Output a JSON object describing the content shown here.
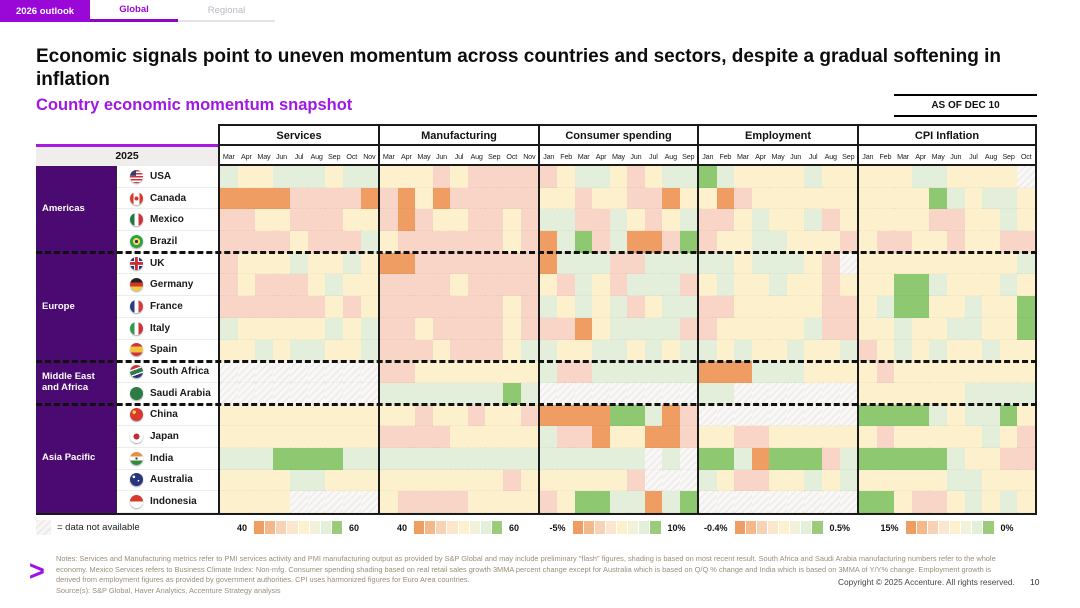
{
  "tabs": [
    {
      "label": "2026 outlook"
    },
    {
      "label": "Global"
    },
    {
      "label": "Regional"
    }
  ],
  "title": "Economic signals point to uneven momentum across countries and sectors, despite a gradual softening in inflation",
  "subtitle": "Country economic momentum snapshot",
  "as_of": "AS OF DEC 10",
  "year_label": "2025",
  "groups": [
    {
      "key": "services",
      "label": "Services",
      "months": [
        "Mar",
        "Apr",
        "May",
        "Jun",
        "Jul",
        "Aug",
        "Sep",
        "Oct",
        "Nov"
      ],
      "scale_min": "40",
      "scale_max": "60"
    },
    {
      "key": "manufacturing",
      "label": "Manufacturing",
      "months": [
        "Mar",
        "Apr",
        "May",
        "Jun",
        "Jul",
        "Aug",
        "Sep",
        "Oct",
        "Nov"
      ],
      "scale_min": "40",
      "scale_max": "60"
    },
    {
      "key": "consumer_spending",
      "label": "Consumer spending",
      "months": [
        "Jan",
        "Feb",
        "Mar",
        "Apr",
        "May",
        "Jun",
        "Jul",
        "Aug",
        "Sep"
      ],
      "scale_min": "-5%",
      "scale_max": "10%"
    },
    {
      "key": "employment",
      "label": "Employment",
      "months": [
        "Jan",
        "Feb",
        "Mar",
        "Apr",
        "May",
        "Jun",
        "Jul",
        "Aug",
        "Sep"
      ],
      "scale_min": "-0.4%",
      "scale_max": "0.5%"
    },
    {
      "key": "cpi_inflation",
      "label": "CPI Inflation",
      "months": [
        "Jan",
        "Feb",
        "Mar",
        "Apr",
        "May",
        "Jun",
        "Jul",
        "Aug",
        "Sep",
        "Oct"
      ],
      "scale_min": "15%",
      "scale_max": "0%"
    }
  ],
  "regions": [
    {
      "id": "americas",
      "label": "Americas",
      "countries": [
        {
          "name": "USA",
          "flag_icon": "usa-flag",
          "flag_css": "linear-gradient(to right, #3a3a6e 0 45%, transparent 45%) 0 0 / 100% 45% no-repeat, repeating-linear-gradient(#c7323a 0 1.5px, #ffffff 1.5px 3px)",
          "cells": {
            "services": "gyygggygg",
            "manufacturing": "yyyoyoooo",
            "consumer_spending": "oyggyoygg",
            "employment": "Ggyyyygyy",
            "cpi_inflation": "yyyggyyyyn"
          }
        },
        {
          "name": "Canada",
          "flag_icon": "canada-flag",
          "flag_css": "radial-gradient(circle at 50% 50%, #d8382e 0 22%, transparent 23%), linear-gradient(to right, #d8382e 0 27%, #ffffff 27% 73%, #d8382e 73%)",
          "cells": {
            "services": "OOOOooooO",
            "manufacturing": "oOyOooooo",
            "consumer_spending": "yyoyyooOy",
            "employment": "yOoyyyyyy",
            "cpi_inflation": "yyyyGgyggy"
          }
        },
        {
          "name": "Mexico",
          "flag_icon": "mexico-flag",
          "flag_css": "linear-gradient(to right, #1c7a43 0 33%, #ffffff 33% 67%, #cf3339 67%)",
          "cells": {
            "services": "ooyyoooyy",
            "manufacturing": "oOoyyooyo",
            "consumer_spending": "ggoogyoyg",
            "employment": "ooygyygoy",
            "cpi_inflation": "yyyyooyygy"
          }
        },
        {
          "name": "Brazil",
          "flag_icon": "brazil-flag",
          "flag_css": "radial-gradient(circle at 50% 50%, #23337e 0 16%, #f8d94c 17% 38%, #30a046 39%)",
          "cells": {
            "services": "ooooyooog",
            "manufacturing": "yooooooyo",
            "consumer_spending": "OgGogOOoG",
            "employment": "oyyggyyyo",
            "cpi_inflation": "yooyyoyyoo"
          }
        }
      ]
    },
    {
      "id": "europe",
      "label": "Europe",
      "countries": [
        {
          "name": "UK",
          "flag_icon": "uk-flag",
          "flag_css": "linear-gradient(#cf2b36,#cf2b36) 50% 50% / 100% 22% no-repeat, linear-gradient(#cf2b36,#cf2b36) 50% 50% / 22% 100% no-repeat, linear-gradient(#ffffff,#ffffff) 50% 50% / 100% 40% no-repeat, linear-gradient(#ffffff,#ffffff) 50% 50% / 40% 100% no-repeat, #28357c",
          "cells": {
            "services": "oyyygyygy",
            "manufacturing": "OOooooooo",
            "consumer_spending": "Ogggooggg",
            "employment": "ggygggyon",
            "cpi_inflation": "yyyyyyyyyg"
          }
        },
        {
          "name": "Germany",
          "flag_icon": "germany-flag",
          "flag_css": "linear-gradient(#26211f 0 33%, #d2352c 33% 66%, #f0c93c 66%)",
          "cells": {
            "services": "oyoooygyy",
            "manufacturing": "ooooyoooo",
            "consumer_spending": "yogyogggo",
            "employment": "ygyygyyoy",
            "cpi_inflation": "yyGGgyyygy"
          }
        },
        {
          "name": "France",
          "flag_icon": "france-flag",
          "flag_css": "linear-gradient(to right, #2c3a8c 0 33%, #ffffff 33% 66%, #d23b3f 66%)",
          "cells": {
            "services": "ooooooyoy",
            "manufacturing": "oooooooyo",
            "consumer_spending": "gygygoygg",
            "employment": "ooyyyyyoo",
            "cpi_inflation": "ygGGyygyyG"
          }
        },
        {
          "name": "Italy",
          "flag_icon": "italy-flag",
          "flag_css": "linear-gradient(to right, #2f9a4e 0 33%, #ffffff 33% 66%, #cf3339 66%)",
          "cells": {
            "services": "gyyyyygyg",
            "manufacturing": "ooyooooyo",
            "consumer_spending": "ooOyggggo",
            "employment": "oyyyyygoo",
            "cpi_inflation": "yygyyggyyG"
          }
        },
        {
          "name": "Spain",
          "flag_icon": "spain-flag",
          "flag_css": "linear-gradient(#cf3339 0 28%, #f2c13e 28% 72%, #cf3339 72%)",
          "cells": {
            "services": "yygyggyyg",
            "manufacturing": "oooyoooyg",
            "consumer_spending": "gyyggygyg",
            "employment": "gygyygyyg",
            "cpi_inflation": "oygygyygyy"
          }
        }
      ]
    },
    {
      "id": "middle-east-africa",
      "label": "Middle East and Africa",
      "countries": [
        {
          "name": "South Africa",
          "flag_icon": "south-africa-flag",
          "flag_css": "linear-gradient(160deg, #cf3339 0 30%, #ffffff 30% 38%, #2f7a46 38% 62%, #ffffff 62% 70%, #28357c 70%)",
          "cells": {
            "services": "nnnnnnnnn",
            "manufacturing": "ooyyyyyyy",
            "consumer_spending": "googggggg",
            "employment": "OOOgggyyy",
            "cpi_inflation": "yoyyyyyyyy"
          }
        },
        {
          "name": "Saudi Arabia",
          "flag_icon": "saudi-arabia-flag",
          "flag_css": "#2c7a45",
          "cells": {
            "services": "nnnnnnnnn",
            "manufacturing": "gggggggGg",
            "consumer_spending": "nnnnnnnnn",
            "employment": "ggnnnnnnn",
            "cpi_inflation": "yyyyyygggg"
          }
        }
      ]
    },
    {
      "id": "asia-pacific",
      "label": "Asia Pacific",
      "countries": [
        {
          "name": "China",
          "flag_icon": "china-flag",
          "flag_css": "radial-gradient(circle at 32% 32%, #f8d94c 0 14%, transparent 15%), #d8382e",
          "cells": {
            "services": "yyyyyyyyy",
            "manufacturing": "yyoyyoyyo",
            "consumer_spending": "OOOOGGgOo",
            "employment": "nnnnnnnnn",
            "cpi_inflation": "GGGGgyggGy"
          }
        },
        {
          "name": "Japan",
          "flag_icon": "japan-flag",
          "flag_css": "radial-gradient(circle at 50% 50%, #c32a3c 0 32%, #ffffff 33%)",
          "cells": {
            "services": "yyyyyyyyy",
            "manufacturing": "ooooyyyyy",
            "consumer_spending": "gooOyyOOo",
            "employment": "yyooyyyyy",
            "cpi_inflation": "yoyyyyygyo"
          }
        },
        {
          "name": "India",
          "flag_icon": "india-flag",
          "flag_css": "radial-gradient(circle at 50% 50%, #28357c 0 12%, transparent 13%), linear-gradient(#e8913c 0 33%, #ffffff 33% 66%, #2f8a3e 66%)",
          "cells": {
            "services": "gggGGGGgg",
            "manufacturing": "ggggggggg",
            "consumer_spending": "ggggggngn",
            "employment": "GGgOGGGog",
            "cpi_inflation": "GGGGGgyyoo"
          }
        },
        {
          "name": "Australia",
          "flag_icon": "australia-flag",
          "flag_css": "radial-gradient(circle at 30% 30%, #ffffff 0 10%, transparent 11%), radial-gradient(circle at 65% 60%, #ffffff 0 7%, transparent 8%), #28357c",
          "cells": {
            "services": "yyyyggyyy",
            "manufacturing": "yyyyyyyoy",
            "consumer_spending": "yyyyyonnn",
            "employment": "gyooyygyg",
            "cpi_inflation": "yyyyyggyyy"
          }
        },
        {
          "name": "Indonesia",
          "flag_icon": "indonesia-flag",
          "flag_css": "linear-gradient(#d8382e 0 50%, #ffffff 50%)",
          "cells": {
            "services": "yyyynnnnn",
            "manufacturing": "yooooyyyy",
            "consumer_spending": "oyGGggOgG",
            "employment": "nnnnnnnnn",
            "cpi_inflation": "GGyooygygy"
          }
        }
      ]
    }
  ],
  "legend": {
    "not_available": "= data not available"
  },
  "colors": {
    "accent_purple": "#9908d6",
    "subtitle_purple": "#a117e3",
    "sidebar_purple": "#4a0a72",
    "cell_palette": {
      "O": "#ef9d63",
      "o": "#f8d5c6",
      "y": "#fdf1cd",
      "g": "#e3efda",
      "G": "#8ec971",
      "n": "#f3f2f0"
    },
    "legend_scale": [
      "#ef9d63",
      "#f3b98b",
      "#f7d2b4",
      "#fbe6cf",
      "#fdf1cd",
      "#f2f2d8",
      "#e2efd9",
      "#9ccb7c"
    ]
  },
  "footer": {
    "notes": "Notes: Services and Manufacturing metrics refer to PMI services activity and PMI manufacturing output as provided by S&P Global and may include preliminary \"flash\" figures, shading is based on most recent result. South Africa and Saudi Arabia manufacturing numbers refer to the whole economy. Mexico Services refers to Business Climate Index: Non-mfg. Consumer spending shading based on real retail sales growth 3MMA percent change except for Australia which is based on Q/Q % change and India which is based on 3MMA of Y/Y% change. Employment growth is derived from employment figures as provided by government authorities. CPI uses harmonized figures for Euro Area countries.",
    "source": "Source(s): S&P Global, Haver Analytics, Accenture Strategy analysis",
    "copyright": "Copyright © 2025 Accenture. All rights reserved.",
    "page_number": "10"
  }
}
